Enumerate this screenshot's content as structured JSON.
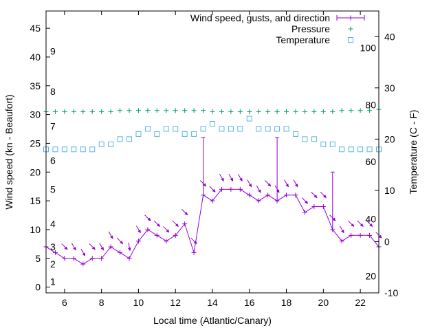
{
  "chart_data": {
    "type": "line",
    "xlabel": "Local time (Atlantic/Canary)",
    "ylabel": "Wind speed (kn - Beaufort)",
    "y2label": "Temperature (C - F)",
    "xlim": [
      5,
      23
    ],
    "ylim": [
      -1,
      48
    ],
    "y2lim": [
      -10,
      45
    ],
    "x_ticks": [
      6,
      8,
      10,
      12,
      14,
      16,
      18,
      20,
      22
    ],
    "y_ticks": [
      0,
      5,
      10,
      15,
      20,
      25,
      30,
      35,
      40,
      45
    ],
    "y2_ticks": [
      -10,
      0,
      10,
      20,
      30,
      40
    ],
    "beaufort_labels": [
      {
        "text": "1",
        "y": 1
      },
      {
        "text": "2",
        "y": 4
      },
      {
        "text": "3",
        "y": 7
      },
      {
        "text": "4",
        "y": 11
      },
      {
        "text": "5",
        "y": 17
      },
      {
        "text": "6",
        "y": 22
      },
      {
        "text": "7",
        "y": 28
      },
      {
        "text": "8",
        "y": 34
      },
      {
        "text": "9",
        "y": 41
      }
    ],
    "fahrenheit_labels": [
      {
        "text": "20",
        "t": -6.7
      },
      {
        "text": "40",
        "t": 4.4
      },
      {
        "text": "60",
        "t": 15.6
      },
      {
        "text": "80",
        "t": 26.7
      },
      {
        "text": "100",
        "t": 37.8
      }
    ],
    "legend": {
      "position": "top-right",
      "entries": [
        "Wind speed, gusts, and direction",
        "Pressure",
        "Temperature"
      ]
    },
    "colors": {
      "wind": "#9400d3",
      "pressure": "#009e73",
      "temperature": "#56b4e9"
    },
    "series": [
      {
        "name": "Wind speed, gusts, and direction",
        "x": [
          5,
          5.5,
          6,
          6.5,
          7,
          7.5,
          8,
          8.5,
          9,
          9.5,
          10,
          10.5,
          11,
          11.5,
          12,
          12.5,
          13,
          13.5,
          14,
          14.5,
          15,
          15.5,
          16,
          16.5,
          17,
          17.5,
          18,
          18.5,
          19,
          19.5,
          20,
          20.5,
          21,
          21.5,
          22,
          22.5,
          23
        ],
        "values": [
          7,
          6,
          5,
          5,
          4,
          5,
          5,
          7,
          6,
          5,
          8,
          10,
          9,
          8,
          9,
          11,
          6,
          16,
          15,
          17,
          17,
          17,
          16,
          15,
          16,
          15,
          16,
          16,
          13,
          14,
          14,
          10,
          8,
          9,
          9,
          9,
          7
        ],
        "gusts": [
          {
            "x": 13.5,
            "value": 26
          },
          {
            "x": 17.5,
            "value": 26
          },
          {
            "x": 20.5,
            "value": 20
          }
        ]
      },
      {
        "name": "Pressure",
        "x": [
          5,
          5.5,
          6,
          6.5,
          7,
          7.5,
          8,
          8.5,
          9,
          9.5,
          10,
          10.5,
          11,
          11.5,
          12,
          12.5,
          13,
          13.5,
          14,
          14.5,
          15,
          15.5,
          16,
          16.5,
          17,
          17.5,
          18,
          18.5,
          19,
          19.5,
          20,
          20.5,
          21,
          21.5,
          22,
          22.5,
          23
        ],
        "values": [
          30.5,
          30.5,
          30.5,
          30.5,
          30.5,
          30.5,
          30.5,
          30.5,
          30.7,
          30.7,
          30.7,
          30.7,
          30.7,
          30.7,
          30.7,
          30.7,
          30.7,
          30.7,
          30.5,
          30.5,
          30.5,
          30.5,
          30.5,
          30.5,
          30.5,
          30.5,
          30.5,
          30.5,
          30.5,
          30.5,
          30.5,
          30.5,
          30.7,
          30.7,
          30.7,
          30.7,
          30.9
        ]
      },
      {
        "name": "Temperature",
        "x": [
          5,
          5.5,
          6,
          6.5,
          7,
          7.5,
          8,
          8.5,
          9,
          9.5,
          10,
          10.5,
          11,
          11.5,
          12,
          12.5,
          13,
          13.5,
          14,
          14.5,
          15,
          15.5,
          16,
          16.5,
          17,
          17.5,
          18,
          18.5,
          19,
          19.5,
          20,
          20.5,
          21,
          21.5,
          22,
          22.5,
          23
        ],
        "values": [
          18,
          18,
          18,
          18,
          18,
          18,
          19,
          19,
          20,
          20,
          21,
          22,
          21,
          22,
          22,
          21,
          21,
          22,
          23,
          22,
          22,
          22,
          24,
          22,
          22,
          22,
          22,
          21,
          20,
          20,
          19,
          19,
          18,
          18,
          18,
          18,
          18
        ]
      }
    ],
    "wind_directions": [
      {
        "x": 6,
        "deg": 315
      },
      {
        "x": 6.5,
        "deg": 330
      },
      {
        "x": 7,
        "deg": 330
      },
      {
        "x": 7.5,
        "deg": 315
      },
      {
        "x": 8,
        "deg": 330
      },
      {
        "x": 8.5,
        "deg": 330
      },
      {
        "x": 9,
        "deg": 315
      },
      {
        "x": 9.5,
        "deg": 350
      },
      {
        "x": 10,
        "deg": 330
      },
      {
        "x": 10.5,
        "deg": 315
      },
      {
        "x": 11,
        "deg": 315
      },
      {
        "x": 11.5,
        "deg": 315
      },
      {
        "x": 12,
        "deg": 315
      },
      {
        "x": 12.5,
        "deg": 315
      },
      {
        "x": 13,
        "deg": 315
      },
      {
        "x": 13.5,
        "deg": 315
      },
      {
        "x": 14,
        "deg": 315
      },
      {
        "x": 14.5,
        "deg": 330
      },
      {
        "x": 15,
        "deg": 330
      },
      {
        "x": 15.5,
        "deg": 330
      },
      {
        "x": 16,
        "deg": 330
      },
      {
        "x": 16.5,
        "deg": 330
      },
      {
        "x": 17,
        "deg": 315
      },
      {
        "x": 17.5,
        "deg": 330
      },
      {
        "x": 18,
        "deg": 330
      },
      {
        "x": 18.5,
        "deg": 330
      },
      {
        "x": 19,
        "deg": 315
      },
      {
        "x": 19.5,
        "deg": 315
      },
      {
        "x": 20,
        "deg": 315
      },
      {
        "x": 20.5,
        "deg": 315
      },
      {
        "x": 21,
        "deg": 330
      },
      {
        "x": 21.5,
        "deg": 315
      },
      {
        "x": 22,
        "deg": 315
      },
      {
        "x": 22.5,
        "deg": 315
      },
      {
        "x": 23,
        "deg": 315
      }
    ]
  }
}
